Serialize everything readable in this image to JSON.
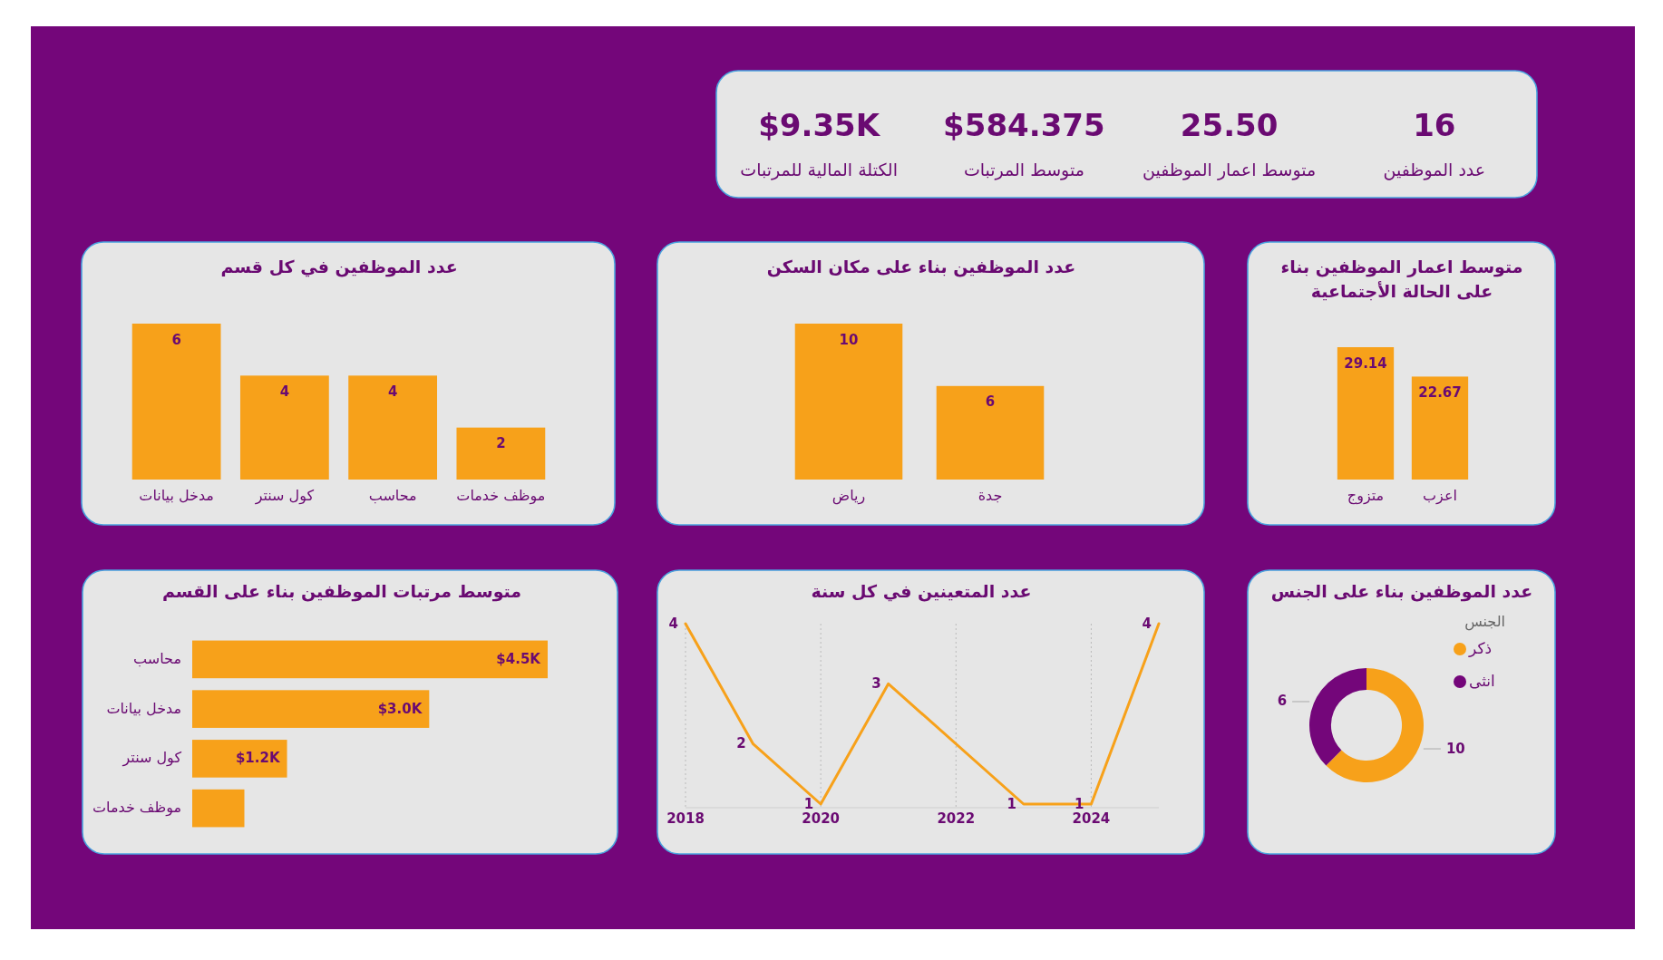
{
  "chart_data": [
    {
      "type": "other",
      "annotations": [
        "$9.35K",
        "الكتلة المالية للمرتبات",
        "$584.375",
        "متوسط المرتبات",
        "25.50",
        "متوسط اعمار الموظفين",
        "16",
        "عدد الموظفين"
      ]
    },
    {
      "type": "bar",
      "title": "عدد الموظفين في كل قسم",
      "categories": [
        "مدخل بيانات",
        "كول سنتر",
        "محاسب",
        "موظف خدمات"
      ],
      "values": [
        6,
        4,
        4,
        2
      ],
      "color": "#f7a11a",
      "data_labels": true
    },
    {
      "type": "bar",
      "title": "عدد الموظفين بناء على مكان السكن",
      "categories": [
        "رياض",
        "جدة"
      ],
      "values": [
        10,
        6
      ],
      "color": "#f7a11a",
      "data_labels": true
    },
    {
      "type": "bar",
      "title": "متوسط اعمار الموظفين بناء على الحالة الأجتماعية",
      "categories": [
        "متزوج",
        "اعزب"
      ],
      "values": [
        29.14,
        22.67
      ],
      "color": "#f7a11a",
      "data_labels": true
    },
    {
      "type": "bar",
      "orientation": "horizontal",
      "title": "متوسط مرتبات الموظفين بناء على القسم",
      "categories": [
        "محاسب",
        "مدخل بيانات",
        "كول سنتر",
        "موظف خدمات"
      ],
      "values": [
        4.5,
        3.0,
        1.2,
        0.66
      ],
      "value_labels": [
        "$4.5K",
        "$3.0K",
        "$1.2K",
        null
      ],
      "color": "#f7a11a"
    },
    {
      "type": "line",
      "title": "عدد المتعينين في كل سنة",
      "x": [
        2018,
        2019,
        2020,
        2021,
        2023,
        2024,
        2025
      ],
      "values": [
        4,
        2,
        1,
        3,
        1,
        1,
        4
      ],
      "xlim": [
        2018,
        2025
      ],
      "xticks": [
        2018,
        2020,
        2022,
        2024
      ],
      "grid": "x",
      "color": "#f7a11a",
      "data_labels": true
    },
    {
      "type": "donut",
      "title": "عدد الموظفين بناء على الجنس",
      "legend_title": "الجنس",
      "categories": [
        "ذكر",
        "انثى"
      ],
      "values": [
        10,
        6
      ],
      "colors": [
        "#f7a11a",
        "#74067a"
      ],
      "legend": "top right",
      "data_labels": true
    }
  ]
}
